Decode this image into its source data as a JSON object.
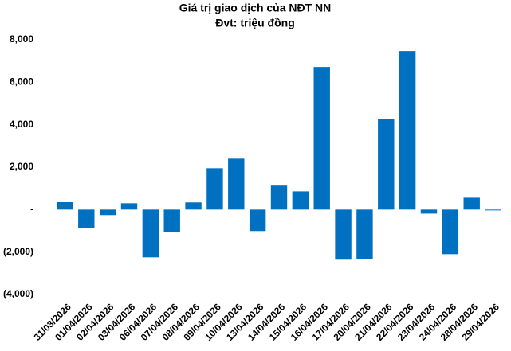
{
  "chart_data": {
    "type": "bar",
    "title": "Giá trị giao dịch của NĐT NN",
    "subtitle": "Đvt: triệu đồng",
    "categories": [
      "31/03/2026",
      "01/04/2026",
      "02/04/2026",
      "03/04/2026",
      "06/04/2026",
      "07/04/2026",
      "08/04/2026",
      "09/04/2026",
      "10/04/2026",
      "13/04/2026",
      "14/04/2026",
      "15/04/2026",
      "16/04/2026",
      "17/04/2026",
      "20/04/2026",
      "21/04/2026",
      "22/04/2026",
      "23/04/2026",
      "24/04/2026",
      "28/04/2026",
      "29/04/2026"
    ],
    "values": [
      350,
      -860,
      -260,
      300,
      -2250,
      -1050,
      340,
      1950,
      2400,
      -1010,
      1130,
      860,
      6720,
      -2360,
      -2330,
      4280,
      7470,
      -190,
      -2100,
      560,
      -30
    ],
    "color": "#0070c0",
    "ylim": [
      -4000,
      8000
    ],
    "yticks": [
      {
        "value": 8000,
        "label": "8,000"
      },
      {
        "value": 6000,
        "label": "6,000"
      },
      {
        "value": 4000,
        "label": "4,000"
      },
      {
        "value": 2000,
        "label": "2,000"
      },
      {
        "value": 0,
        "label": "-"
      },
      {
        "value": -2000,
        "label": "(2,000)"
      },
      {
        "value": -4000,
        "label": "(4,000)"
      }
    ],
    "grid": false
  }
}
